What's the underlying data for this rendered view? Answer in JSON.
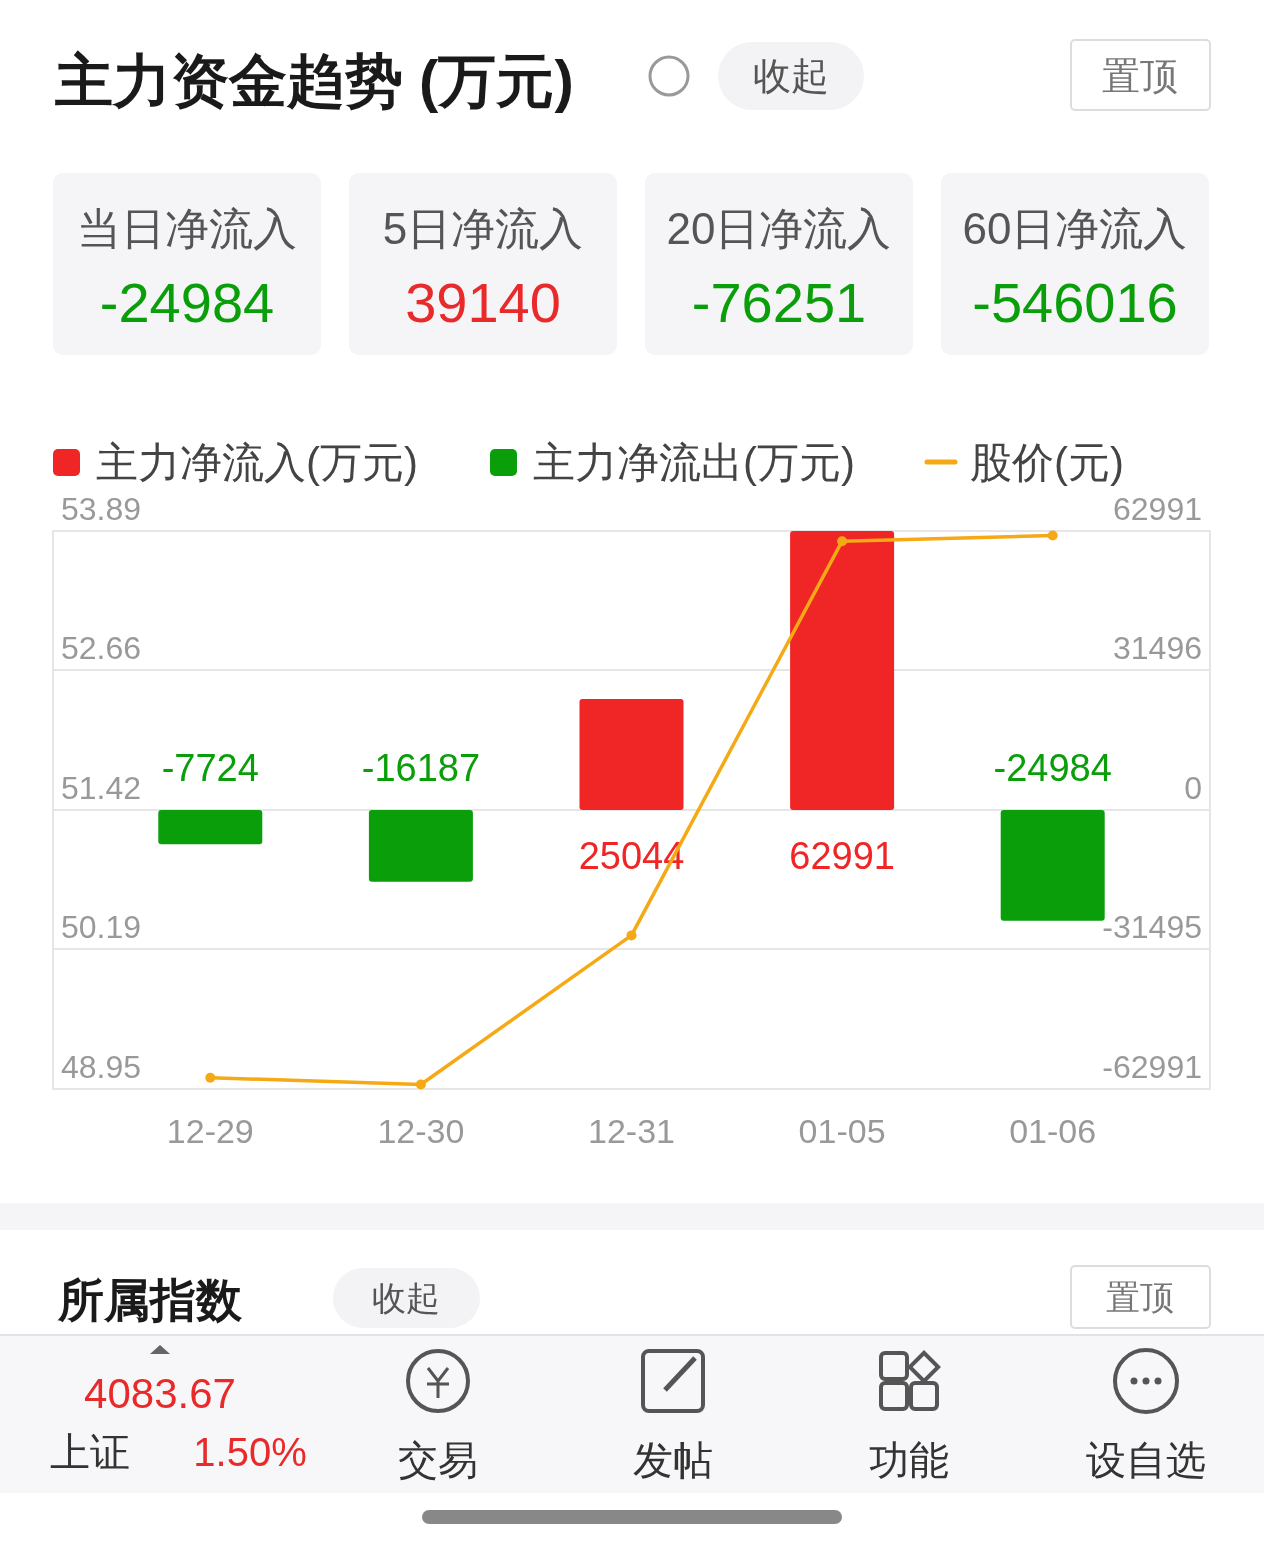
{
  "chart_data": [
    {
      "type": "other",
      "title": "主力资金趋势 (万元)",
      "annotations": [
        "收起",
        "置顶",
        "当日净流入",
        "-24984",
        "5日净流入",
        "39140",
        "20日净流入",
        "-76251",
        "60日净流入",
        "-546016"
      ]
    },
    {
      "type": "bar",
      "categories": [
        "12-29",
        "12-30",
        "12-31",
        "01-05",
        "01-06"
      ],
      "series": [
        {
          "name": "主力净流入(万元)",
          "color": "#f02626",
          "type": "bar",
          "axis": "y2",
          "values": [
            null,
            null,
            25044,
            62991,
            null
          ],
          "value_labels": [
            null,
            null,
            "25044",
            "62991",
            null
          ]
        },
        {
          "name": "主力净流出(万元)",
          "color": "#0a9e0a",
          "type": "bar",
          "axis": "y2",
          "values": [
            -7724,
            -16187,
            null,
            null,
            -24984
          ],
          "value_labels": [
            "-7724",
            "-16187",
            null,
            null,
            "-24984"
          ]
        },
        {
          "name": "股价(元)",
          "color": "#f5a915",
          "type": "line",
          "axis": "y",
          "values": [
            49.05,
            48.99,
            50.31,
            53.8,
            53.85
          ]
        }
      ],
      "ylim": [
        48.95,
        53.89
      ],
      "yticks": [
        48.95,
        50.19,
        51.42,
        52.66,
        53.89
      ],
      "y2lim": [
        -62991,
        62991
      ],
      "y2ticks": [
        -62991,
        -31495,
        0,
        31496,
        62991
      ],
      "grid": "y",
      "legend": "top",
      "marker": "circle",
      "line_style": "solid"
    },
    {
      "type": "other",
      "title": "所属指数",
      "annotations": [
        "收起",
        "置顶",
        "4083.67",
        "上证",
        "1.50%",
        "交易",
        "发帖",
        "功能",
        "设自选"
      ]
    }
  ]
}
